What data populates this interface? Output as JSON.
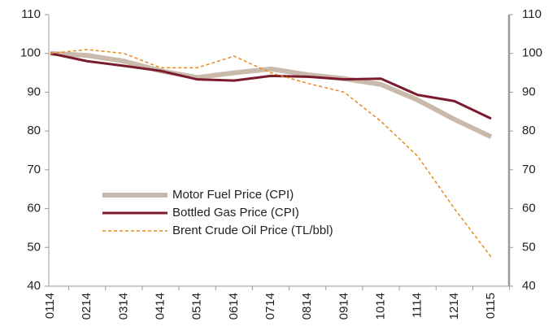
{
  "chart_data": {
    "type": "line",
    "categories": [
      "0114",
      "0214",
      "0314",
      "0414",
      "0514",
      "0614",
      "0714",
      "0814",
      "0914",
      "1014",
      "1114",
      "1214",
      "0115"
    ],
    "series": [
      {
        "name": "Motor Fuel Price (CPI)",
        "color": "#c9baab",
        "width": 6,
        "dashed": false,
        "values": [
          100,
          99.5,
          98,
          95.5,
          93.8,
          95,
          96,
          94.5,
          93.5,
          92,
          88,
          83,
          78.5
        ]
      },
      {
        "name": "Bottled Gas Price (CPI)",
        "color": "#7b1c2e",
        "width": 3,
        "dashed": false,
        "values": [
          100,
          98,
          96.8,
          95.5,
          93.3,
          93,
          94.2,
          94,
          93.3,
          93.5,
          89.3,
          87.7,
          83.2
        ]
      },
      {
        "name": "Brent Crude Oil Price (TL/bbl)",
        "color": "#e8891a",
        "width": 1.5,
        "dashed": true,
        "values": [
          100,
          101,
          100,
          96.3,
          96.3,
          99.3,
          95,
          92.3,
          90,
          82.5,
          73.5,
          60,
          47.5
        ]
      }
    ],
    "ylim": [
      40,
      110
    ],
    "yticks": [
      40,
      50,
      60,
      70,
      80,
      90,
      100,
      110
    ],
    "y2lim": [
      40,
      110
    ],
    "y2ticks": [
      40,
      50,
      60,
      70,
      80,
      90,
      100,
      110
    ],
    "grid": false,
    "legend": "lower left"
  }
}
